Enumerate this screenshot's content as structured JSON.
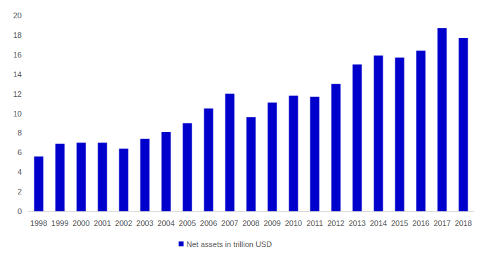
{
  "chart_data": {
    "type": "bar",
    "categories": [
      "1998",
      "1999",
      "2000",
      "2001",
      "2002",
      "2003",
      "2004",
      "2005",
      "2006",
      "2007",
      "2008",
      "2009",
      "2010",
      "2011",
      "2012",
      "2013",
      "2014",
      "2015",
      "2016",
      "2017",
      "2018"
    ],
    "series": [
      {
        "name": "Net assets in trillion USD",
        "color": "#0000cc",
        "values": [
          5.6,
          6.9,
          7.0,
          7.0,
          6.4,
          7.4,
          8.1,
          9.0,
          10.5,
          12.0,
          9.6,
          11.1,
          11.8,
          11.7,
          13.0,
          15.0,
          15.9,
          15.7,
          16.4,
          18.7,
          17.7
        ]
      }
    ],
    "ylim": [
      0,
      20
    ],
    "yticks": [
      0,
      2,
      4,
      6,
      8,
      10,
      12,
      14,
      16,
      18,
      20
    ],
    "grid": false,
    "legend": "bottom"
  }
}
